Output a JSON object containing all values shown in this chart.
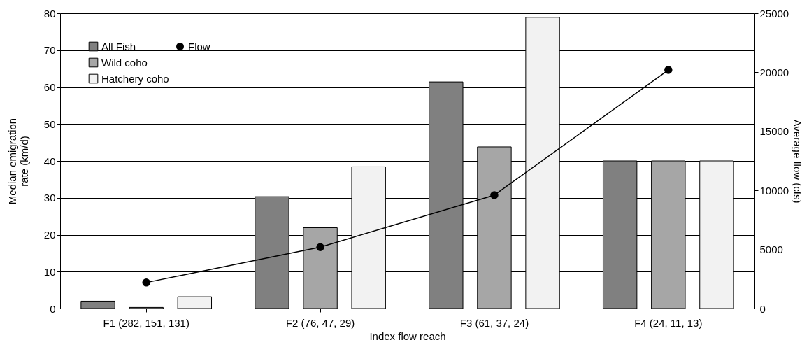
{
  "chart_data": {
    "type": "bar",
    "categories": [
      "F1 (282, 151, 131)",
      "F2 (76, 47, 29)",
      "F3 (61, 37, 24)",
      "F4 (24, 11, 13)"
    ],
    "xlabel": "Index flow reach",
    "ylabel": "Median emigration rate (km/d)",
    "y2label": "Average flow (cfs)",
    "series": [
      {
        "name": "All Fish",
        "color": "#808080",
        "values": [
          2.0,
          30.3,
          61.4,
          40
        ]
      },
      {
        "name": "Wild coho",
        "color": "#a6a6a6",
        "values": [
          0.3,
          21.9,
          43.8,
          40
        ]
      },
      {
        "name": "Hatchery coho",
        "color": "#f2f2f2",
        "values": [
          3.2,
          38.4,
          78.9,
          40
        ]
      },
      {
        "name": "Flow",
        "type": "line",
        "axis": "y2",
        "color": "#000000",
        "marker": "circle",
        "values": [
          2200,
          5200,
          9600,
          20200
        ]
      }
    ],
    "ylim": [
      0,
      80
    ],
    "yticks": [
      0,
      10,
      20,
      30,
      40,
      50,
      60,
      70,
      80
    ],
    "y2lim": [
      0,
      25000
    ],
    "y2ticks": [
      0,
      5000,
      10000,
      15000,
      20000,
      25000
    ],
    "grid": "y",
    "legend": "top left"
  }
}
